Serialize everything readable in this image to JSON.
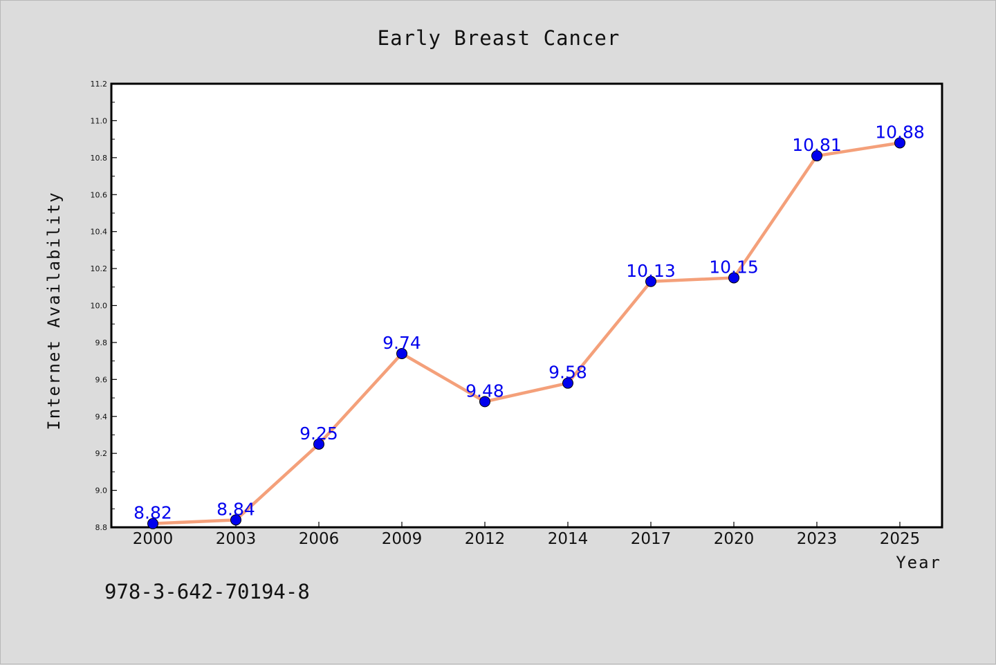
{
  "chart_data": {
    "type": "line",
    "title": "Early Breast Cancer",
    "xlabel": "Year",
    "ylabel": "Internet Availability",
    "categories": [
      "2000",
      "2003",
      "2006",
      "2009",
      "2012",
      "2014",
      "2017",
      "2020",
      "2023",
      "2025"
    ],
    "series": [
      {
        "values": [
          8.82,
          8.84,
          9.25,
          9.74,
          9.48,
          9.58,
          10.13,
          10.15,
          10.81,
          10.88
        ]
      }
    ],
    "data_labels": [
      "8.82",
      "8.84",
      "9.25",
      "9.74",
      "9.48",
      "9.58",
      "10.13",
      "10.15",
      "10.81",
      "10.88"
    ],
    "ylim": [
      8.8,
      11.2
    ],
    "yticks": [
      "8.8",
      "9.0",
      "9.2",
      "9.4",
      "9.6",
      "9.8",
      "10.0",
      "10.2",
      "10.4",
      "10.6",
      "10.8",
      "11.0",
      "11.2"
    ],
    "grid": false,
    "line_color": "#f4a07a",
    "marker_color": "#0000ee",
    "label_color": "#0000ee"
  },
  "footer": {
    "isbn": "978-3-642-70194-8"
  }
}
